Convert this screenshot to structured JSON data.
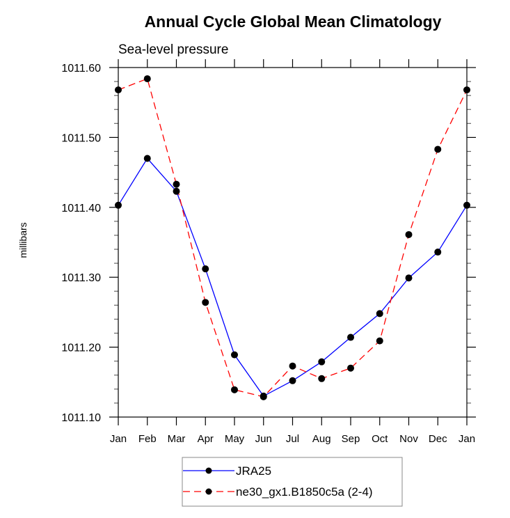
{
  "chart_data": {
    "type": "line",
    "title": "Annual Cycle Global Mean Climatology",
    "subtitle": "Sea-level pressure",
    "xlabel": "",
    "ylabel": "millibars",
    "categories": [
      "Jan",
      "Feb",
      "Mar",
      "Apr",
      "May",
      "Jun",
      "Jul",
      "Aug",
      "Sep",
      "Oct",
      "Nov",
      "Dec",
      "Jan"
    ],
    "ylim": [
      1011.1,
      1011.6
    ],
    "yticks": [
      1011.1,
      1011.2,
      1011.3,
      1011.4,
      1011.5,
      1011.6
    ],
    "ytick_labels": [
      "1011.10",
      "1011.20",
      "1011.30",
      "1011.40",
      "1011.50",
      "1011.60"
    ],
    "y_minor_step": 0.02,
    "grid": false,
    "legend_position": "bottom-center",
    "series": [
      {
        "name": "JRA25",
        "color": "#0000ff",
        "line_style": "solid",
        "marker": "filled-circle",
        "marker_color": "#000000",
        "values": [
          1011.403,
          1011.47,
          1011.423,
          1011.312,
          1011.189,
          1011.13,
          1011.152,
          1011.179,
          1011.214,
          1011.248,
          1011.299,
          1011.336,
          1011.403
        ]
      },
      {
        "name": "ne30_gx1.B1850c5a (2-4)",
        "color": "#ff0000",
        "line_style": "dashed",
        "marker": "filled-circle",
        "marker_color": "#000000",
        "values": [
          1011.568,
          1011.584,
          1011.433,
          1011.264,
          1011.139,
          1011.129,
          1011.173,
          1011.155,
          1011.17,
          1011.209,
          1011.361,
          1011.483,
          1011.568
        ]
      }
    ]
  }
}
